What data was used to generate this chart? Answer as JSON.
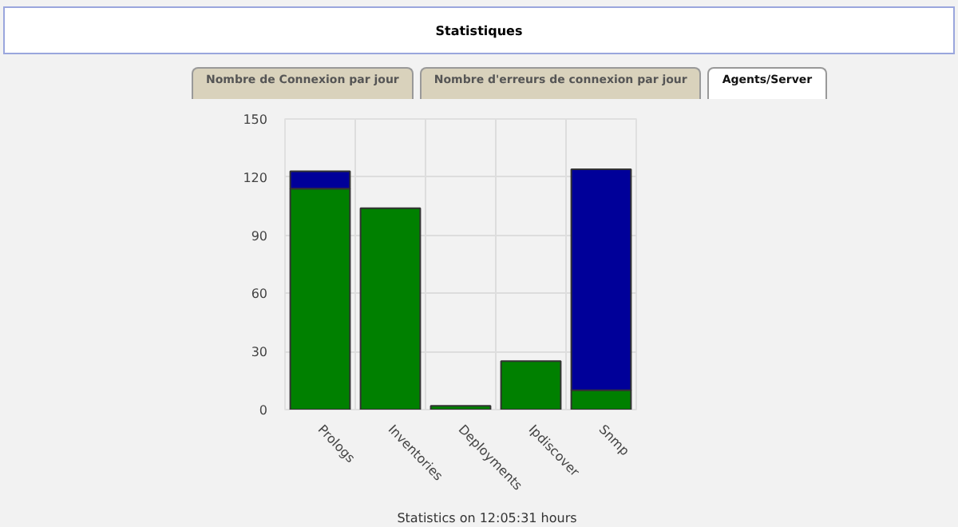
{
  "chart_data": {
    "type": "bar",
    "title": "Statistiques",
    "annotations": [
      "Nombre de Connexion par jour",
      "Nombre d'erreurs de connexion par jour",
      "Agents/Server",
      "Statistics on 12:05:31 hours"
    ],
    "categories": [
      "Prologs",
      "Inventories",
      "Deployments",
      "Ipdiscover",
      "Snmp"
    ],
    "stacked": true,
    "series": [
      {
        "color": "#008000",
        "values": [
          114,
          104,
          2,
          25,
          10
        ]
      },
      {
        "color": "#000099",
        "values": [
          9,
          null,
          null,
          null,
          114
        ]
      }
    ],
    "ylim": [
      0,
      150
    ],
    "yticks": [
      0,
      30,
      60,
      90,
      120,
      150
    ],
    "grid": true
  }
}
